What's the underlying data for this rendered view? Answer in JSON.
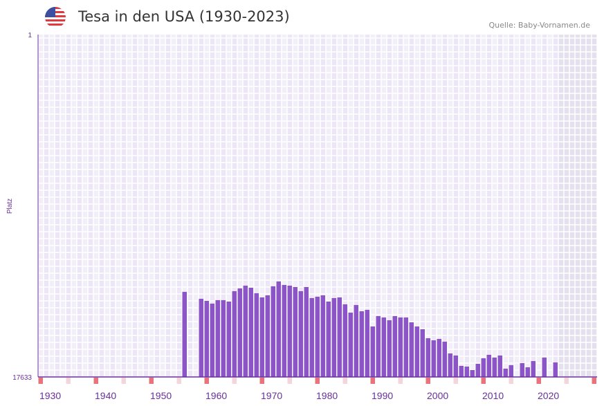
{
  "header": {
    "title": "Tesa in den USA (1930-2023)",
    "source": "Quelle: Baby-Vornamen.de",
    "flag_icon": "us-flag-icon"
  },
  "colors": {
    "bar": "#8b55c8",
    "axis": "#6a2f9a",
    "decade": "#e8737a",
    "halfdecade": "#f5d5dc",
    "grid_a": "#f3eff9",
    "grid_b": "#ece6f6",
    "future": "#e4e0ee"
  },
  "chart_data": {
    "type": "bar",
    "title": "Tesa in den USA (1930-2023)",
    "xlabel": "",
    "ylabel": "Platz",
    "y_inverted": true,
    "ylim": [
      1,
      17633
    ],
    "y_ticks": [
      "1",
      "17633"
    ],
    "x_range": [
      1930,
      2030
    ],
    "x_ticks": [
      "1930",
      "1940",
      "1950",
      "1960",
      "1970",
      "1980",
      "1990",
      "2000",
      "2010",
      "2020"
    ],
    "future_from": 2024,
    "years": [
      1956,
      1959,
      1960,
      1961,
      1962,
      1963,
      1964,
      1965,
      1966,
      1967,
      1968,
      1969,
      1970,
      1971,
      1972,
      1973,
      1974,
      1975,
      1976,
      1977,
      1978,
      1979,
      1980,
      1981,
      1982,
      1983,
      1984,
      1985,
      1986,
      1987,
      1988,
      1989,
      1990,
      1991,
      1992,
      1993,
      1994,
      1995,
      1996,
      1997,
      1998,
      1999,
      2000,
      2001,
      2002,
      2003,
      2004,
      2005,
      2006,
      2007,
      2008,
      2009,
      2010,
      2011,
      2012,
      2013,
      2014,
      2015,
      2017,
      2018,
      2019,
      2021,
      2023
    ],
    "ranks": [
      13250,
      13607,
      13714,
      13857,
      13678,
      13678,
      13750,
      13215,
      13072,
      12930,
      13037,
      13322,
      13536,
      13429,
      12965,
      12716,
      12894,
      12930,
      13001,
      13215,
      13001,
      13571,
      13500,
      13429,
      13750,
      13571,
      13536,
      13893,
      14320,
      13928,
      14249,
      14178,
      15033,
      14499,
      14570,
      14713,
      14499,
      14570,
      14570,
      14819,
      15033,
      15175,
      15638,
      15745,
      15674,
      15817,
      16422,
      16529,
      17063,
      17099,
      17277,
      16956,
      16671,
      16493,
      16635,
      16529,
      17206,
      17027,
      16921,
      17135,
      16814,
      16635,
      16885
    ]
  }
}
